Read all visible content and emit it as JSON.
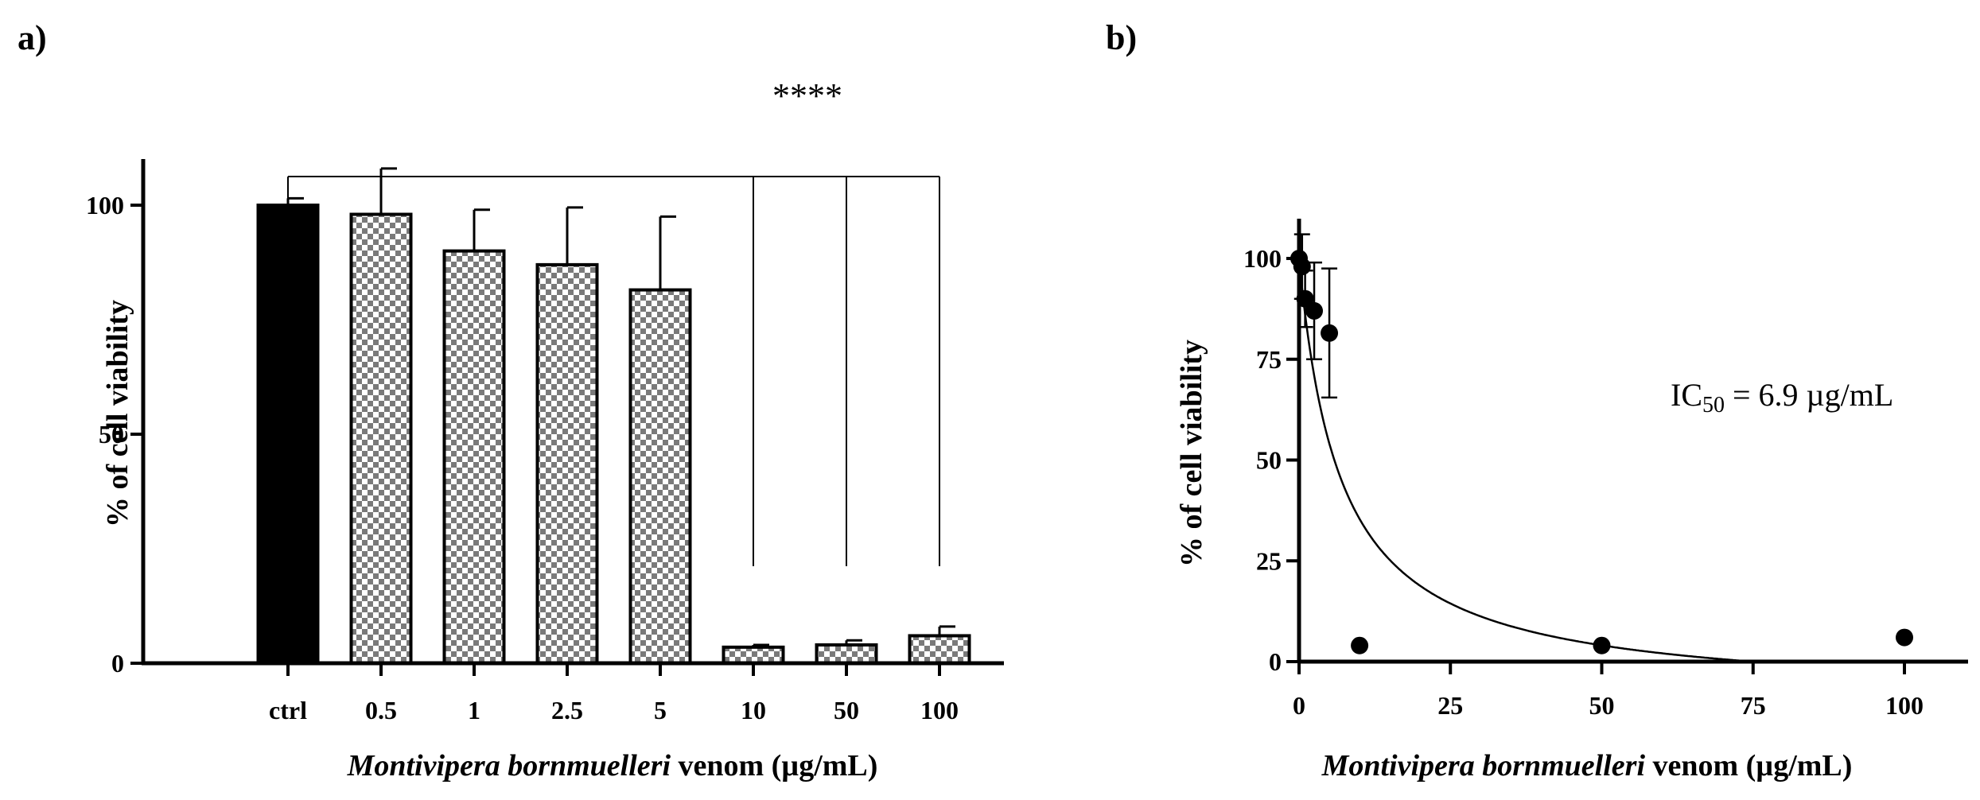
{
  "chart_data": [
    {
      "panel": "a)",
      "type": "bar",
      "categories": [
        "ctrl",
        "0.5",
        "1",
        "2.5",
        "5",
        "10",
        "50",
        "100"
      ],
      "values": [
        100,
        98,
        90,
        87,
        81.5,
        3.5,
        4,
        6
      ],
      "errors": [
        1.5,
        10,
        9,
        12.5,
        16,
        0.5,
        1,
        2
      ],
      "fills": [
        "solid",
        "checker",
        "checker",
        "checker",
        "checker",
        "checker",
        "checker",
        "checker"
      ],
      "ylabel": "% of cell viability",
      "xlabel_italic": "Montivipera bornmuelleri",
      "xlabel_rest": " venom (µg/mL)",
      "ylim": [
        0,
        110
      ],
      "yticks": [
        "0",
        "50",
        "100"
      ],
      "significance": "****",
      "colors": {
        "solid": "#000000",
        "checker_dark": "#7a7a7a",
        "checker_light": "#ffffff"
      }
    },
    {
      "panel": "b)",
      "type": "scatter",
      "x": [
        0,
        0.5,
        1,
        2.5,
        5,
        10,
        50,
        100
      ],
      "y": [
        100,
        98,
        90,
        87,
        81.5,
        4,
        4,
        6
      ],
      "errors": [
        0,
        8,
        7,
        12,
        16,
        0,
        0,
        0
      ],
      "fit": "dose-response curve",
      "ylabel": "% of cell viability",
      "xlabel_italic": "Montivipera bornmuelleri",
      "xlabel_rest": " venom (µg/mL)",
      "xlim": [
        0,
        110
      ],
      "ylim": [
        0,
        110
      ],
      "xticks": [
        "0",
        "25",
        "50",
        "75",
        "100"
      ],
      "yticks": [
        "0",
        "25",
        "50",
        "75",
        "100"
      ],
      "annotation_main": "IC",
      "annotation_sub": "50",
      "annotation_rest": " = 6.9 µg/mL"
    }
  ]
}
